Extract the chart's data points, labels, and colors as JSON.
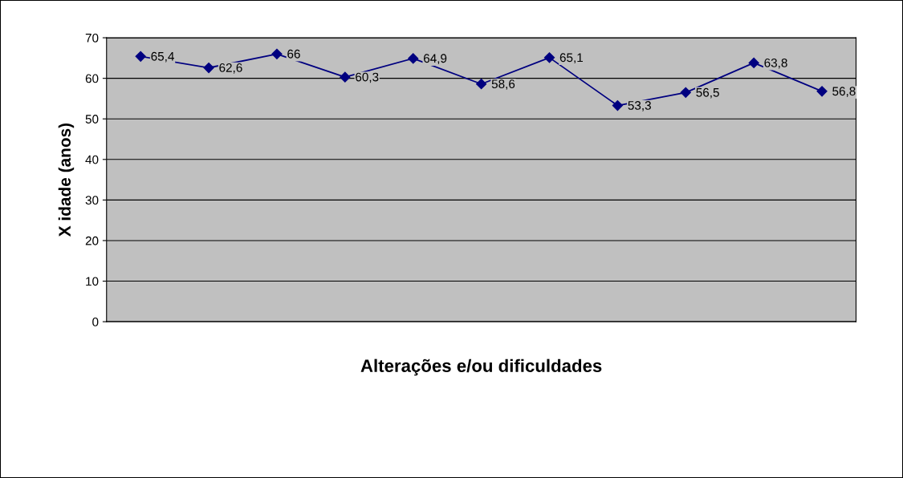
{
  "chart_data": {
    "type": "line",
    "xlabel": "Alterações e/ou dificuldades",
    "ylabel": "X idade (anos)",
    "categories": [
      null,
      null,
      null,
      null,
      null,
      null,
      null,
      null,
      null,
      null,
      null
    ],
    "series": [
      {
        "color": "#000080",
        "values": [
          65.4,
          62.6,
          66,
          60.3,
          64.9,
          58.6,
          65.1,
          53.3,
          56.5,
          63.8,
          56.8
        ],
        "value_labels": [
          "65,4",
          "62,6",
          "66",
          "60,3",
          "64,9",
          "58,6",
          "65,1",
          "53,3",
          "56,5",
          "63,8",
          "56,8"
        ]
      }
    ],
    "ylim": [
      0,
      70
    ],
    "yticks": [
      0,
      10,
      20,
      30,
      40,
      50,
      60,
      70
    ],
    "grid": "y",
    "marker": "diamond",
    "line_style": "solid"
  }
}
